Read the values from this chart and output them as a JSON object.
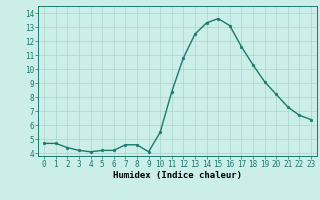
{
  "x": [
    0,
    1,
    2,
    3,
    4,
    5,
    6,
    7,
    8,
    9,
    10,
    11,
    12,
    13,
    14,
    15,
    16,
    17,
    18,
    19,
    20,
    21,
    22,
    23
  ],
  "y": [
    4.7,
    4.7,
    4.4,
    4.2,
    4.1,
    4.2,
    4.2,
    4.6,
    4.6,
    4.1,
    5.5,
    8.4,
    10.8,
    12.5,
    13.3,
    13.6,
    13.1,
    11.6,
    10.3,
    9.1,
    8.2,
    7.3,
    6.7,
    6.4
  ],
  "line_color": "#1a7a6e",
  "marker": "o",
  "markersize": 2.0,
  "linewidth": 1.0,
  "bg_color": "#cceee8",
  "grid_color_major": "#aad4cc",
  "grid_color_minor": "#bbddd8",
  "xlabel": "Humidex (Indice chaleur)",
  "xlabel_fontsize": 6.5,
  "tick_fontsize": 5.5,
  "xlim": [
    -0.5,
    23.5
  ],
  "ylim": [
    3.8,
    14.5
  ],
  "yticks": [
    4,
    5,
    6,
    7,
    8,
    9,
    10,
    11,
    12,
    13,
    14
  ],
  "xticks": [
    0,
    1,
    2,
    3,
    4,
    5,
    6,
    7,
    8,
    9,
    10,
    11,
    12,
    13,
    14,
    15,
    16,
    17,
    18,
    19,
    20,
    21,
    22,
    23
  ]
}
